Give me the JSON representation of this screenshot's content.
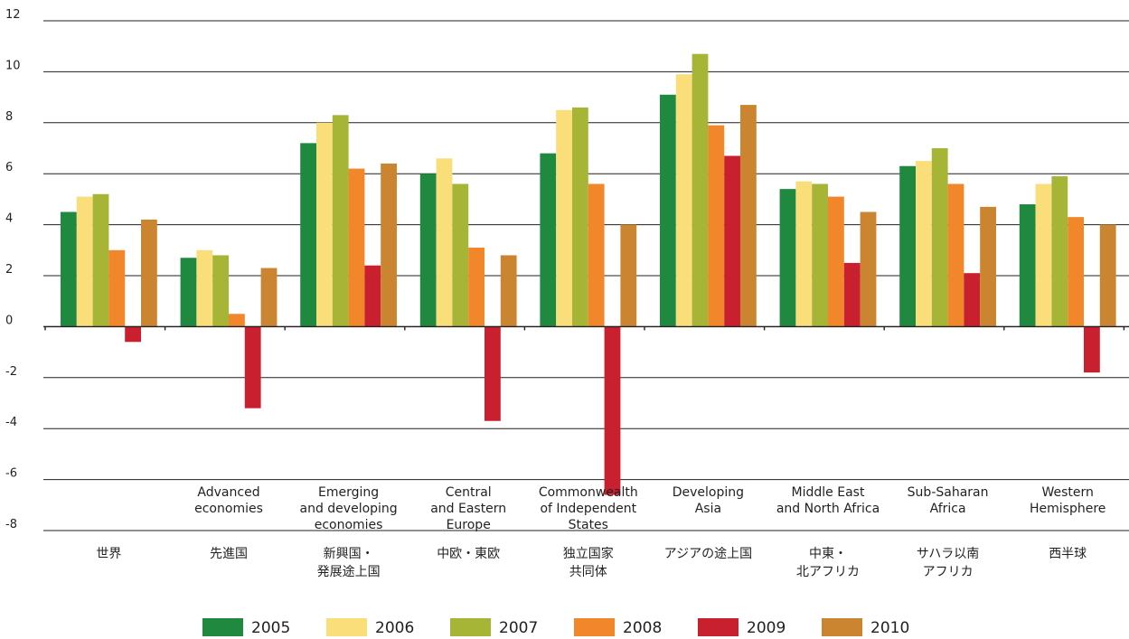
{
  "chart_data": {
    "type": "bar",
    "ylim": [
      -8,
      12
    ],
    "yticks": [
      12,
      10,
      8,
      6,
      4,
      2,
      0,
      -2,
      -4,
      -6,
      -8
    ],
    "grid": true,
    "legend_position": "bottom",
    "categories": [
      {
        "en": [],
        "jp": [
          "世界"
        ]
      },
      {
        "en": [
          "Advanced",
          "economies"
        ],
        "jp": [
          "先進国"
        ]
      },
      {
        "en": [
          "Emerging",
          "and developing",
          "economies"
        ],
        "jp": [
          "新興国・",
          "発展途上国"
        ]
      },
      {
        "en": [
          "Central",
          "and Eastern",
          "Europe"
        ],
        "jp": [
          "中欧・東欧"
        ]
      },
      {
        "en": [
          "Commonwealth",
          "of Independent",
          "States"
        ],
        "jp": [
          "独立国家",
          "共同体"
        ]
      },
      {
        "en": [
          "Developing",
          "Asia"
        ],
        "jp": [
          "アジアの途上国"
        ]
      },
      {
        "en": [
          "Middle East",
          "and North Africa"
        ],
        "jp": [
          "中東・",
          "北アフリカ"
        ]
      },
      {
        "en": [
          "Sub-Saharan",
          "Africa"
        ],
        "jp": [
          "サハラ以南",
          "アフリカ"
        ]
      },
      {
        "en": [
          "Western",
          "Hemisphere"
        ],
        "jp": [
          "西半球"
        ]
      }
    ],
    "series": [
      {
        "name": "2005",
        "color": "#1f8a3f",
        "values": [
          4.5,
          2.7,
          7.2,
          6.0,
          6.8,
          9.1,
          5.4,
          6.3,
          4.8
        ]
      },
      {
        "name": "2006",
        "color": "#f9de7a",
        "values": [
          5.1,
          3.0,
          8.0,
          6.6,
          8.5,
          9.9,
          5.7,
          6.5,
          5.6
        ]
      },
      {
        "name": "2007",
        "color": "#a7b536",
        "values": [
          5.2,
          2.8,
          8.3,
          5.6,
          8.6,
          10.7,
          5.6,
          7.0,
          5.9
        ]
      },
      {
        "name": "2008",
        "color": "#f1862a",
        "values": [
          3.0,
          0.5,
          6.2,
          3.1,
          5.6,
          7.9,
          5.1,
          5.6,
          4.3
        ]
      },
      {
        "name": "2009",
        "color": "#c8202f",
        "values": [
          -0.6,
          -3.2,
          2.4,
          -3.7,
          -6.6,
          6.7,
          2.5,
          2.1,
          -1.8
        ]
      },
      {
        "name": "2010",
        "color": "#cb8530",
        "values": [
          4.2,
          2.3,
          6.4,
          2.8,
          4.0,
          8.7,
          4.5,
          4.7,
          4.0
        ]
      }
    ]
  }
}
